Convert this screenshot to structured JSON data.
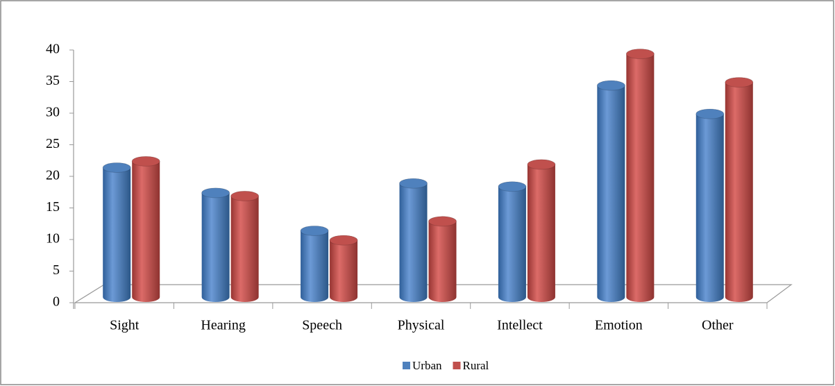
{
  "chart_data": {
    "type": "bar",
    "categories": [
      "Sight",
      "Hearing",
      "Speech",
      "Physical",
      "Intellect",
      "Emotion",
      "Other"
    ],
    "series": [
      {
        "name": "Urban",
        "color": "#4f81bd",
        "values": [
          20.5,
          16.5,
          10.5,
          18,
          17.5,
          33.5,
          29
        ]
      },
      {
        "name": "Rural",
        "color": "#c0504d",
        "values": [
          21.5,
          16,
          9,
          12,
          21,
          38.5,
          34
        ]
      }
    ],
    "ylim": [
      0,
      40
    ],
    "yticks": [
      0,
      5,
      10,
      15,
      20,
      25,
      30,
      35,
      40
    ],
    "grid": false,
    "legend": "bottom"
  }
}
